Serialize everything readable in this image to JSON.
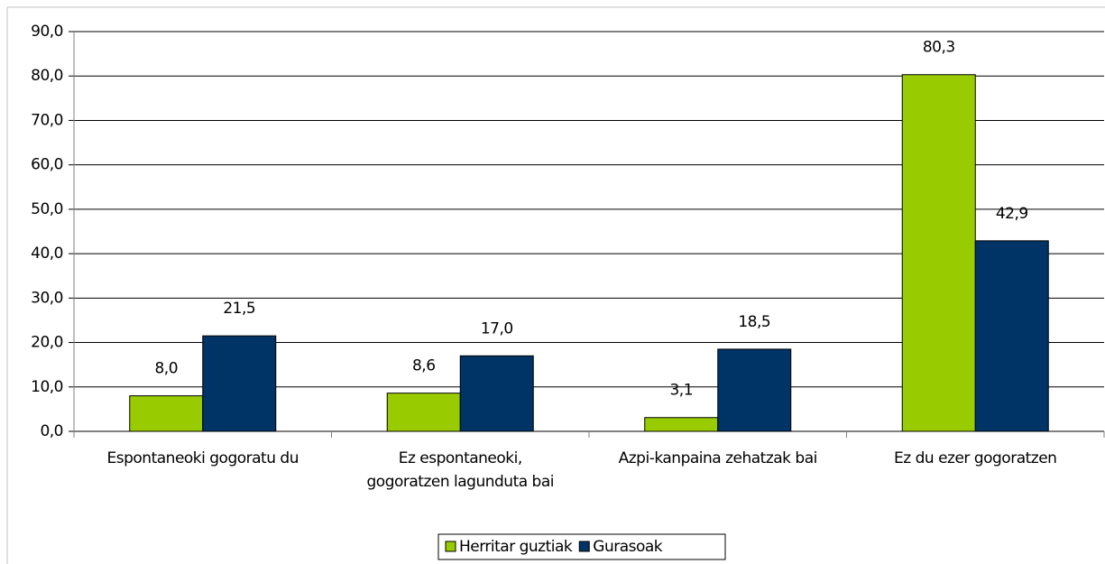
{
  "chart_data": {
    "type": "bar",
    "categories": [
      "Espontaneoki gogoratu du",
      "Ez espontaneoki,\ngogoratzen lagunduta bai",
      "Azpi-kanpaina zehatzak bai",
      "Ez du ezer gogoratzen"
    ],
    "series": [
      {
        "name": "Herritar guztiak",
        "color": "#99cc00",
        "values": [
          8.0,
          8.6,
          3.1,
          80.3
        ],
        "value_labels": [
          "8,0",
          "8,6",
          "3,1",
          "80,3"
        ]
      },
      {
        "name": "Gurasoak",
        "color": "#003366",
        "values": [
          21.5,
          17.0,
          18.5,
          42.9
        ],
        "value_labels": [
          "21,5",
          "17,0",
          "18,5",
          "42,9"
        ]
      }
    ],
    "ylim": [
      0,
      90
    ],
    "yticks": [
      {
        "value": 0,
        "label": "0,0"
      },
      {
        "value": 10,
        "label": "10,0"
      },
      {
        "value": 20,
        "label": "20,0"
      },
      {
        "value": 30,
        "label": "30,0"
      },
      {
        "value": 40,
        "label": "40,0"
      },
      {
        "value": 50,
        "label": "50,0"
      },
      {
        "value": 60,
        "label": "60,0"
      },
      {
        "value": 70,
        "label": "70,0"
      },
      {
        "value": 80,
        "label": "80,0"
      },
      {
        "value": 90,
        "label": "90,0"
      }
    ],
    "grid": true,
    "legend": "bottom"
  }
}
